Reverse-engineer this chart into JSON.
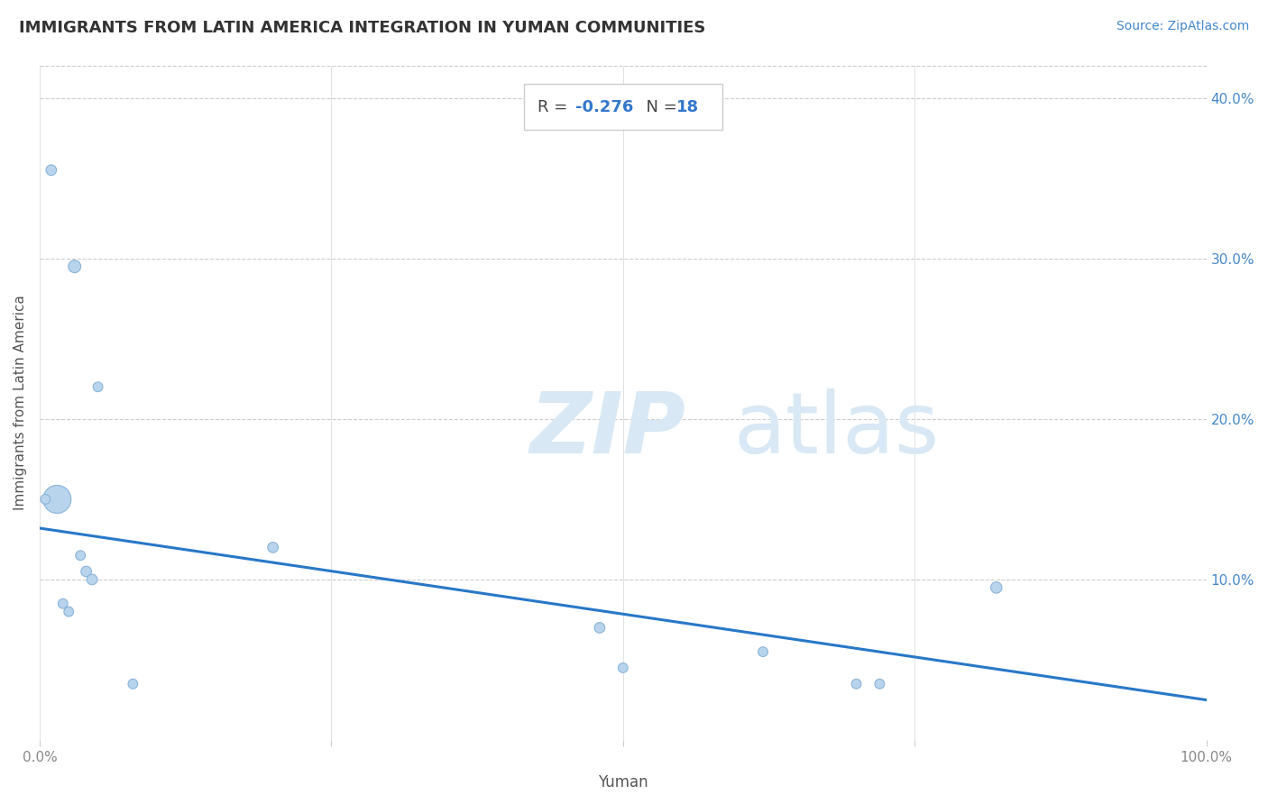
{
  "title": "IMMIGRANTS FROM LATIN AMERICA INTEGRATION IN YUMAN COMMUNITIES",
  "source": "Source: ZipAtlas.com",
  "xlabel": "Yuman",
  "ylabel": "Immigrants from Latin America",
  "R": -0.276,
  "N": 18,
  "scatter_x": [
    1.0,
    3.0,
    5.0,
    1.5,
    3.5,
    4.0,
    4.5,
    0.5,
    2.0,
    2.5,
    20.0,
    48.0,
    62.0,
    70.0,
    82.0,
    72.0,
    50.0,
    8.0
  ],
  "scatter_y": [
    35.5,
    29.5,
    22.0,
    15.0,
    11.5,
    10.5,
    10.0,
    15.0,
    8.5,
    8.0,
    12.0,
    7.0,
    5.5,
    3.5,
    9.5,
    3.5,
    4.5,
    3.5
  ],
  "scatter_sizes": [
    70,
    100,
    60,
    500,
    60,
    70,
    70,
    60,
    60,
    60,
    70,
    70,
    60,
    60,
    80,
    60,
    60,
    60
  ],
  "dot_color": "#b8d4ec",
  "dot_edge_color": "#8ab4d8",
  "line_color": "#2878c8",
  "regression_x0": 0.0,
  "regression_y0": 13.2,
  "regression_x1": 100.0,
  "regression_y1": 2.5,
  "xlim": [
    0,
    100
  ],
  "ylim": [
    0,
    42
  ],
  "xticks": [
    0,
    25,
    50,
    75,
    100
  ],
  "xticklabels_show": [
    "0.0%",
    "100.0%"
  ],
  "yticks_right": [
    10,
    20,
    30,
    40
  ],
  "yticklabels_right": [
    "10.0%",
    "20.0%",
    "30.0%",
    "40.0%"
  ],
  "grid_color": "#cccccc",
  "bg_color": "#ffffff",
  "title_fontsize": 13,
  "watermark_color": "#d8e8f4",
  "tick_color": "#888888",
  "label_color": "#555555",
  "source_color": "#4488cc",
  "right_tick_color": "#4488cc",
  "annot_R_color": "#3377cc",
  "annot_label_color": "#444444"
}
